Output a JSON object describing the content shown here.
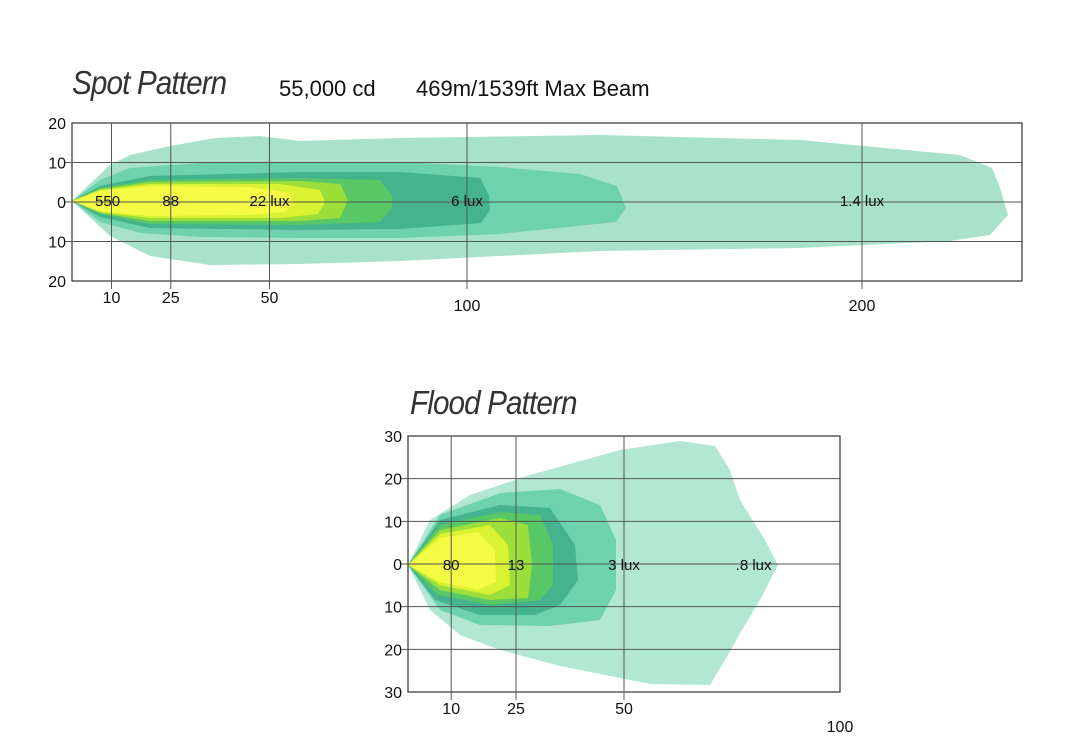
{
  "chart_data": [
    {
      "type": "area",
      "title": "Spot Pattern",
      "intensity": "55,000 cd",
      "max_beam": "469m/1539ft Max Beam",
      "x_ticks": [
        10,
        25,
        50,
        100,
        200
      ],
      "y_ticks": [
        "20",
        "10",
        "0",
        "10",
        "20"
      ],
      "xlim": [
        0,
        240
      ],
      "ylim": [
        -20,
        20
      ],
      "contour_labels": [
        {
          "text": "550",
          "x": 9,
          "y": 0
        },
        {
          "text": "88",
          "x": 25,
          "y": 0
        },
        {
          "text": "22 lux",
          "x": 50,
          "y": 0
        },
        {
          "text": "6 lux",
          "x": 100,
          "y": 0
        },
        {
          "text": "1.4 lux",
          "x": 200,
          "y": 0
        }
      ],
      "colors": [
        "#a8e2cb",
        "#6fd2ae",
        "#45b38e",
        "#58c765",
        "#9ddf3a",
        "#d9f232",
        "#f4fb45"
      ]
    },
    {
      "type": "area",
      "title": "Flood Pattern",
      "x_ticks": [
        10,
        25,
        50,
        100
      ],
      "y_ticks": [
        "30",
        "20",
        "10",
        "0",
        "10",
        "20",
        "30"
      ],
      "xlim": [
        0,
        100
      ],
      "ylim": [
        -30,
        30
      ],
      "contour_labels": [
        {
          "text": "80",
          "x": 10,
          "y": 0
        },
        {
          "text": "13",
          "x": 25,
          "y": 0
        },
        {
          "text": "3 lux",
          "x": 50,
          "y": 0
        },
        {
          "text": ".8 lux",
          "x": 80,
          "y": 0
        }
      ],
      "colors": [
        "#b2e8d3",
        "#6fd2ae",
        "#45b38e",
        "#58c765",
        "#9ddf3a",
        "#d9f232",
        "#f4fb45"
      ]
    }
  ]
}
